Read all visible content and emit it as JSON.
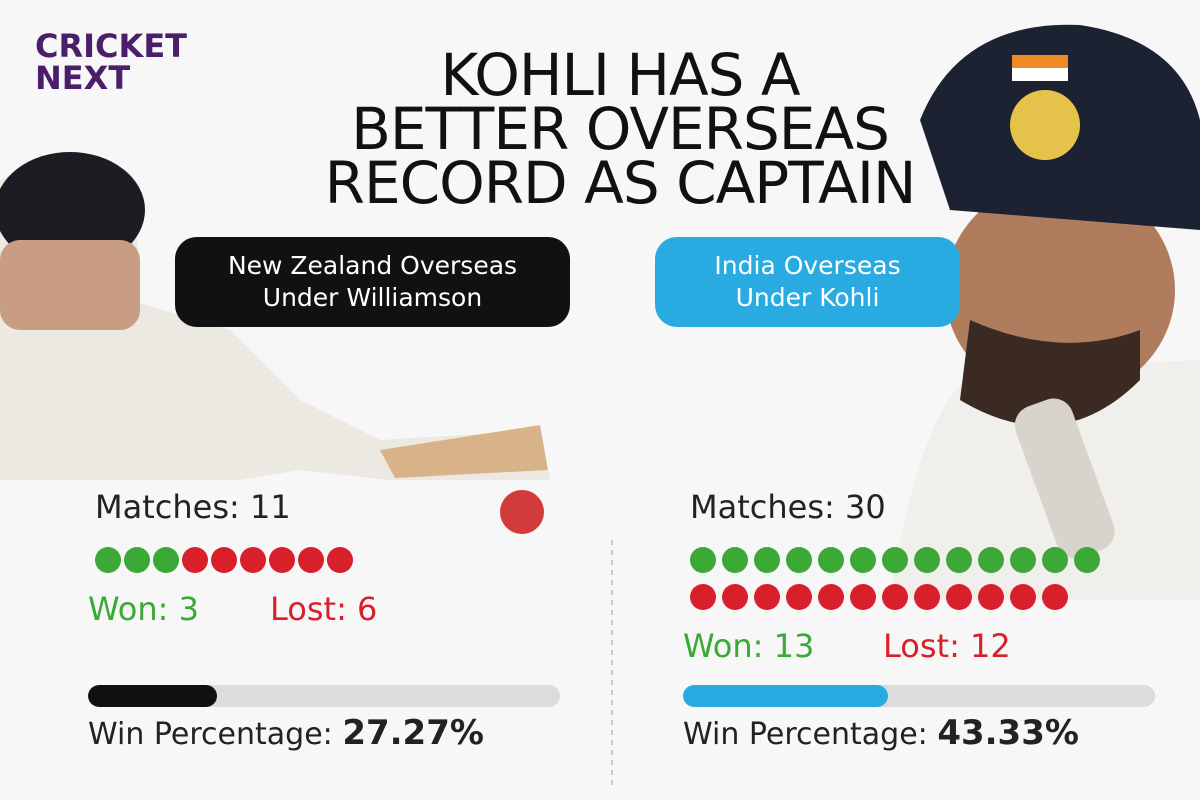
{
  "logo": {
    "top": "CRICKET",
    "bottom": "NEXT"
  },
  "title": {
    "lines": [
      "KOHLI HAS A",
      "BETTER OVERSEAS",
      "RECORD AS CAPTAIN"
    ]
  },
  "panels": [
    {
      "label": [
        "New Zealand Overseas",
        "Under Williamson"
      ],
      "matches": {
        "label": "Matches:",
        "value": 11
      },
      "won": {
        "label": "Won:",
        "value": 3
      },
      "lost": {
        "label": "Lost:",
        "value": 6
      },
      "win_percentage": {
        "label": "Win Percentage:",
        "value": {
          "value": 27.27,
          "label": "27.27%"
        }
      }
    },
    {
      "label": [
        "India Overseas",
        "Under Kohli"
      ],
      "matches": {
        "label": "Matches:",
        "value": 30
      },
      "won": {
        "label": "Won:",
        "value": 13
      },
      "lost": {
        "label": "Lost:",
        "value": 12
      },
      "win_percentage": {
        "label": "Win Percentage:",
        "value": {
          "value": 43.33,
          "label": "43.33%"
        }
      }
    }
  ]
}
